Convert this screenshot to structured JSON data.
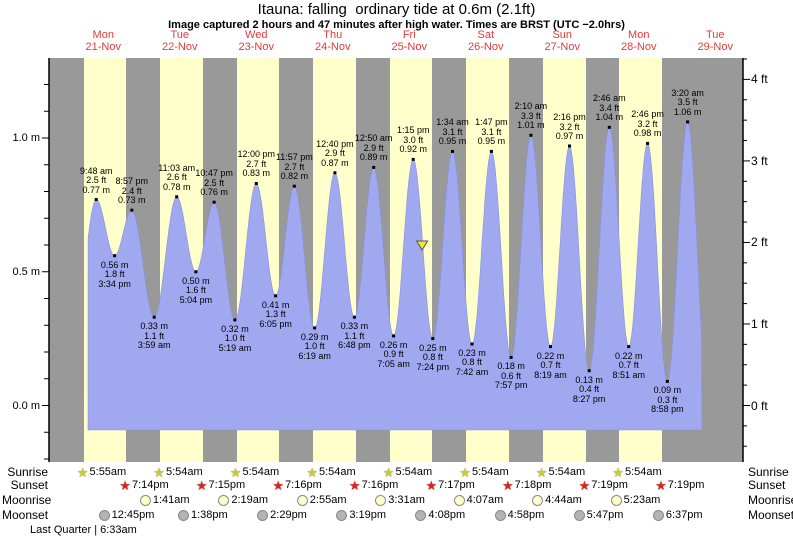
{
  "header": {
    "title": "Itauna: falling  ordinary tide at 0.6m (2.1ft)",
    "subtitle": "Image captured 2 hours and 47 minutes after high water. Times are BRST (UTC −2.0hrs)"
  },
  "days": [
    {
      "name": "Mon",
      "date": "21-Nov"
    },
    {
      "name": "Tue",
      "date": "22-Nov"
    },
    {
      "name": "Wed",
      "date": "23-Nov"
    },
    {
      "name": "Thu",
      "date": "24-Nov"
    },
    {
      "name": "Fri",
      "date": "25-Nov"
    },
    {
      "name": "Sat",
      "date": "26-Nov"
    },
    {
      "name": "Sun",
      "date": "27-Nov"
    },
    {
      "name": "Mon",
      "date": "28-Nov"
    },
    {
      "name": "Tue",
      "date": "29-Nov"
    }
  ],
  "axes": {
    "left": [
      {
        "label": "1.0 m",
        "value": 1.0
      },
      {
        "label": "0.5 m",
        "value": 0.5
      },
      {
        "label": "0.0 m",
        "value": 0.0
      }
    ],
    "right": [
      {
        "label": "4 ft",
        "value": 4
      },
      {
        "label": "3 ft",
        "value": 3
      },
      {
        "label": "2 ft",
        "value": 2
      },
      {
        "label": "1 ft",
        "value": 1
      },
      {
        "label": "0 ft",
        "value": 0
      }
    ]
  },
  "chart_data": {
    "type": "area",
    "title": "Itauna tide heights 21-Nov to 29-Nov",
    "y_units": [
      "m",
      "ft"
    ],
    "ylim_m": [
      -0.2,
      1.3
    ],
    "tide_events": [
      {
        "kind": "high",
        "day": 0,
        "time": "9:48 am",
        "ft": "2.5 ft",
        "m": "0.77 m",
        "height_m": 0.77
      },
      {
        "kind": "low",
        "day": 0,
        "time": "3:34 pm",
        "ft": "1.8 ft",
        "m": "0.56 m",
        "height_m": 0.56
      },
      {
        "kind": "high",
        "day": 0,
        "time": "8:57 pm",
        "ft": "2.4 ft",
        "m": "0.73 m",
        "height_m": 0.73
      },
      {
        "kind": "low",
        "day": 1,
        "time": "3:59 am",
        "ft": "1.1 ft",
        "m": "0.33 m",
        "height_m": 0.33
      },
      {
        "kind": "high",
        "day": 1,
        "time": "11:03 am",
        "ft": "2.6 ft",
        "m": "0.78 m",
        "height_m": 0.78
      },
      {
        "kind": "low",
        "day": 1,
        "time": "5:04 pm",
        "ft": "1.6 ft",
        "m": "0.50 m",
        "height_m": 0.5
      },
      {
        "kind": "high",
        "day": 1,
        "time": "10:47 pm",
        "ft": "2.5 ft",
        "m": "0.76 m",
        "height_m": 0.76
      },
      {
        "kind": "low",
        "day": 2,
        "time": "5:19 am",
        "ft": "1.0 ft",
        "m": "0.32 m",
        "height_m": 0.32
      },
      {
        "kind": "high",
        "day": 2,
        "time": "12:00 pm",
        "ft": "2.7 ft",
        "m": "0.83 m",
        "height_m": 0.83
      },
      {
        "kind": "low",
        "day": 2,
        "time": "6:05 pm",
        "ft": "1.3 ft",
        "m": "0.41 m",
        "height_m": 0.41
      },
      {
        "kind": "high",
        "day": 2,
        "time": "11:57 pm",
        "ft": "2.7 ft",
        "m": "0.82 m",
        "height_m": 0.82
      },
      {
        "kind": "low",
        "day": 3,
        "time": "6:19 am",
        "ft": "1.0 ft",
        "m": "0.29 m",
        "height_m": 0.29
      },
      {
        "kind": "high",
        "day": 3,
        "time": "12:40 pm",
        "ft": "2.9 ft",
        "m": "0.87 m",
        "height_m": 0.87
      },
      {
        "kind": "low",
        "day": 3,
        "time": "6:48 pm",
        "ft": "1.1 ft",
        "m": "0.33 m",
        "height_m": 0.33
      },
      {
        "kind": "high",
        "day": 4,
        "time": "12:50 am",
        "ft": "2.9 ft",
        "m": "0.89 m",
        "height_m": 0.89
      },
      {
        "kind": "low",
        "day": 4,
        "time": "7:05 am",
        "ft": "0.9 ft",
        "m": "0.26 m",
        "height_m": 0.26
      },
      {
        "kind": "high",
        "day": 4,
        "time": "1:15 pm",
        "ft": "3.0 ft",
        "m": "0.92 m",
        "height_m": 0.92
      },
      {
        "kind": "low",
        "day": 4,
        "time": "7:24 pm",
        "ft": "0.8 ft",
        "m": "0.25 m",
        "height_m": 0.25
      },
      {
        "kind": "high",
        "day": 5,
        "time": "1:34 am",
        "ft": "3.1 ft",
        "m": "0.95 m",
        "height_m": 0.95
      },
      {
        "kind": "low",
        "day": 5,
        "time": "7:42 am",
        "ft": "0.8 ft",
        "m": "0.23 m",
        "height_m": 0.23
      },
      {
        "kind": "high",
        "day": 5,
        "time": "1:47 pm",
        "ft": "3.1 ft",
        "m": "0.95 m",
        "height_m": 0.95
      },
      {
        "kind": "low",
        "day": 5,
        "time": "7:57 pm",
        "ft": "0.6 ft",
        "m": "0.18 m",
        "height_m": 0.18
      },
      {
        "kind": "high",
        "day": 6,
        "time": "2:10 am",
        "ft": "3.3 ft",
        "m": "1.01 m",
        "height_m": 1.01
      },
      {
        "kind": "low",
        "day": 6,
        "time": "8:19 am",
        "ft": "0.7 ft",
        "m": "0.22 m",
        "height_m": 0.22
      },
      {
        "kind": "high",
        "day": 6,
        "time": "2:16 pm",
        "ft": "3.2 ft",
        "m": "0.97 m",
        "height_m": 0.97
      },
      {
        "kind": "low",
        "day": 6,
        "time": "8:27 pm",
        "ft": "0.4 ft",
        "m": "0.13 m",
        "height_m": 0.13
      },
      {
        "kind": "high",
        "day": 7,
        "time": "2:46 am",
        "ft": "3.4 ft",
        "m": "1.04 m",
        "height_m": 1.04
      },
      {
        "kind": "low",
        "day": 7,
        "time": "8:51 am",
        "ft": "0.7 ft",
        "m": "0.22 m",
        "height_m": 0.22
      },
      {
        "kind": "high",
        "day": 7,
        "time": "2:46 pm",
        "ft": "3.2 ft",
        "m": "0.98 m",
        "height_m": 0.98
      },
      {
        "kind": "low",
        "day": 7,
        "time": "8:58 pm",
        "ft": "0.3 ft",
        "m": "0.09 m",
        "height_m": 0.09
      },
      {
        "kind": "high",
        "day": 8,
        "time": "3:20 am",
        "ft": "3.5 ft",
        "m": "1.06 m",
        "height_m": 1.06
      }
    ],
    "current_marker": {
      "state": "falling",
      "height_m": 0.6,
      "height_ft": 2.1,
      "hour": 112.03
    }
  },
  "astro": {
    "rows": [
      {
        "name": "Sunrise",
        "icon": "sunrise-icon",
        "events": [
          {
            "day": 0,
            "time": "5:55am"
          },
          {
            "day": 1,
            "time": "5:54am"
          },
          {
            "day": 2,
            "time": "5:54am"
          },
          {
            "day": 3,
            "time": "5:54am"
          },
          {
            "day": 4,
            "time": "5:54am"
          },
          {
            "day": 5,
            "time": "5:54am"
          },
          {
            "day": 6,
            "time": "5:54am"
          },
          {
            "day": 7,
            "time": "5:54am"
          }
        ]
      },
      {
        "name": "Sunset",
        "icon": "sunset-icon",
        "events": [
          {
            "day": 0,
            "time": "7:14pm"
          },
          {
            "day": 1,
            "time": "7:15pm"
          },
          {
            "day": 2,
            "time": "7:16pm"
          },
          {
            "day": 3,
            "time": "7:16pm"
          },
          {
            "day": 4,
            "time": "7:17pm"
          },
          {
            "day": 5,
            "time": "7:18pm"
          },
          {
            "day": 6,
            "time": "7:19pm"
          },
          {
            "day": 7,
            "time": "7:19pm"
          }
        ]
      },
      {
        "name": "Moonrise",
        "icon": "moonrise-icon",
        "events": [
          {
            "day": 1,
            "time": "1:41am"
          },
          {
            "day": 2,
            "time": "2:19am"
          },
          {
            "day": 3,
            "time": "2:55am"
          },
          {
            "day": 4,
            "time": "3:31am"
          },
          {
            "day": 5,
            "time": "4:07am"
          },
          {
            "day": 6,
            "time": "4:44am"
          },
          {
            "day": 7,
            "time": "5:23am"
          }
        ]
      },
      {
        "name": "Moonset",
        "icon": "moonset-icon",
        "events": [
          {
            "day": 0,
            "time": "12:45pm"
          },
          {
            "day": 1,
            "time": "1:38pm"
          },
          {
            "day": 2,
            "time": "2:29pm"
          },
          {
            "day": 3,
            "time": "3:19pm"
          },
          {
            "day": 4,
            "time": "4:08pm"
          },
          {
            "day": 5,
            "time": "4:58pm"
          },
          {
            "day": 6,
            "time": "5:47pm"
          },
          {
            "day": 7,
            "time": "6:37pm"
          }
        ]
      }
    ],
    "moon_phase": "Last Quarter | 6:33am"
  },
  "colors": {
    "night_band": "#999999",
    "day_band": "#ffffcc",
    "tide_fill": "#a0a8f0",
    "tide_edge": "#8890e0",
    "header_red": "#e43a3a",
    "sunrise_star": "#c9c93a",
    "sunset_star": "#dd2222",
    "moonrise_fill": "#ffffcc",
    "moonset_fill": "#b4b4b4",
    "icon_edge": "#777755",
    "marker_yellow": "#f0e43c",
    "axis": "#000000"
  }
}
